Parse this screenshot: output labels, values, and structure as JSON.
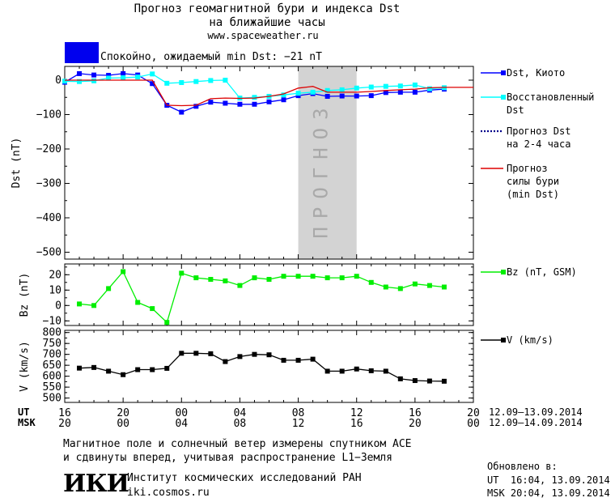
{
  "header": {
    "title_line1": "Прогноз геомагнитной бури и индекса Dst",
    "title_line2": "на ближайшие часы",
    "url": "www.spaceweather.ru",
    "status_text": "Спокойно, ожидаемый min Dst: −21 nT",
    "status_color": "#0000ee"
  },
  "chart_data": [
    {
      "type": "line",
      "panel": "dst",
      "ylabel": "Dst (nT)",
      "ylim": [
        -520,
        40
      ],
      "yticks": [
        0,
        -100,
        -200,
        -300,
        -400,
        -500
      ],
      "ytick_labels": [
        "0",
        "−100",
        "−200",
        "−300",
        "−400",
        "−500"
      ],
      "xlim": [
        16,
        44
      ],
      "forecast_label": "ПРОГНОЗ",
      "forecast_region": [
        32,
        36
      ],
      "series": [
        {
          "name": "Dst, Киото",
          "color": "#0000ff",
          "style": "line-square",
          "x": [
            16,
            17,
            18,
            19,
            20,
            21,
            22,
            23,
            24,
            25,
            26,
            27,
            28,
            29,
            30,
            31,
            32,
            33,
            34,
            35,
            36,
            37,
            38,
            39,
            40,
            41,
            42
          ],
          "y": [
            -6,
            19,
            15,
            14,
            19,
            15,
            -10,
            -73,
            -93,
            -76,
            -64,
            -67,
            -70,
            -70,
            -63,
            -57,
            -45,
            -39,
            -47,
            -46,
            -46,
            -45,
            -36,
            -35,
            -35,
            -29,
            -26
          ]
        },
        {
          "name": "Восстановленный Dst",
          "color": "#00ffff",
          "style": "line-square",
          "x": [
            16,
            17,
            18,
            19,
            20,
            21,
            22,
            23,
            24,
            25,
            26,
            27,
            28,
            29,
            30,
            31,
            32,
            33,
            34,
            35,
            36,
            37,
            38,
            39,
            40,
            41,
            42
          ],
          "y": [
            -3,
            -4,
            -2,
            6,
            7,
            9,
            18,
            -9,
            -7,
            -4,
            -1,
            0,
            -52,
            -50,
            -47,
            -43,
            -38,
            -35,
            -30,
            -28,
            -23,
            -20,
            -18,
            -17,
            -14,
            -25,
            -22
          ]
        },
        {
          "name": "Прогноз Dst на 2-4 часа",
          "color": "#00008b",
          "style": "dotted",
          "x": [],
          "y": []
        },
        {
          "name": "Прогноз силы бури (min Dst)",
          "color": "#dd0000",
          "style": "line",
          "x": [
            16,
            18,
            20,
            21,
            22,
            23,
            24,
            25,
            26,
            27,
            28,
            29,
            30,
            31,
            32,
            33,
            34,
            35,
            36,
            37,
            38,
            39,
            40,
            41,
            42,
            43,
            44
          ],
          "y": [
            0,
            0,
            0,
            0,
            0,
            -73,
            -74,
            -73,
            -54,
            -52,
            -53,
            -52,
            -47,
            -40,
            -23,
            -18,
            -35,
            -35,
            -35,
            -33,
            -30,
            -28,
            -26,
            -22,
            -21,
            -21,
            -21
          ]
        }
      ]
    },
    {
      "type": "line",
      "panel": "bz",
      "ylabel": "Bz (nT)",
      "ylim": [
        -13,
        27
      ],
      "yticks": [
        20,
        10,
        0,
        -10
      ],
      "ytick_labels": [
        "20",
        "10",
        "0",
        "−10"
      ],
      "xlim": [
        16,
        44
      ],
      "series": [
        {
          "name": "Bz (nT, GSM)",
          "color": "#00ee00",
          "style": "line-square",
          "x": [
            17,
            18,
            19,
            20,
            21,
            22,
            23,
            24,
            25,
            26,
            27,
            28,
            29,
            30,
            31,
            32,
            33,
            34,
            35,
            36,
            37,
            38,
            39,
            40,
            41,
            42
          ],
          "y": [
            1,
            0,
            11,
            22,
            2,
            -2,
            -11,
            21,
            18,
            17,
            16,
            13,
            18,
            17,
            19,
            19,
            19,
            18,
            18,
            19,
            15,
            12,
            11,
            14,
            13,
            12
          ]
        }
      ]
    },
    {
      "type": "line",
      "panel": "v",
      "ylabel": "V (km/s)",
      "ylim": [
        480,
        810
      ],
      "yticks": [
        800,
        750,
        700,
        650,
        600,
        550,
        500
      ],
      "ytick_labels": [
        "800",
        "750",
        "700",
        "650",
        "600",
        "550",
        "500"
      ],
      "xlim": [
        16,
        44
      ],
      "series": [
        {
          "name": "V (km/s)",
          "color": "#000000",
          "style": "line-square",
          "x": [
            17,
            18,
            19,
            20,
            21,
            22,
            23,
            24,
            25,
            26,
            27,
            28,
            29,
            30,
            31,
            32,
            33,
            34,
            35,
            36,
            37,
            38,
            39,
            40,
            41,
            42
          ],
          "y": [
            637,
            640,
            623,
            607,
            630,
            630,
            636,
            705,
            705,
            703,
            667,
            690,
            700,
            698,
            673,
            673,
            678,
            623,
            623,
            633,
            625,
            623,
            588,
            580,
            578,
            577
          ]
        }
      ]
    }
  ],
  "xaxis": {
    "ut_label": "UT",
    "msk_label": "MSK",
    "ut_ticks": [
      "16",
      "20",
      "00",
      "04",
      "08",
      "12",
      "16",
      "20"
    ],
    "msk_ticks": [
      "20",
      "00",
      "04",
      "08",
      "12",
      "16",
      "20",
      "00"
    ],
    "ut_range": "12.09–13.09.2014",
    "msk_range": "12.09–14.09.2014"
  },
  "footer": {
    "line1": "Магнитное поле и солнечный ветер измерены спутником ACE",
    "line2": "и сдвинуты вперед, учитывая распространение L1−Земля",
    "logo_text": "ИКИ",
    "institute": "Институт космических исследований РАН",
    "site": "iki.cosmos.ru",
    "updated_label": "Обновлено в:",
    "updated_ut": "UT  16:04, 13.09.2014",
    "updated_msk": "MSK 20:04, 13.09.2014"
  }
}
